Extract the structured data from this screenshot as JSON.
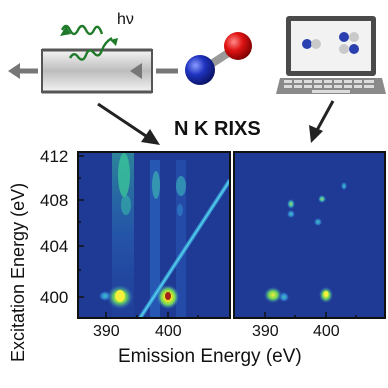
{
  "top": {
    "photon_label": "hν",
    "heading": "N K RIXS"
  },
  "axes": {
    "y_label": "Excitation Energy",
    "y_unit": "(eV)",
    "x_label": "Emission Energy (eV)",
    "y_ticks": [
      "412",
      "408",
      "404",
      "400"
    ],
    "left_x_ticks": [
      "390",
      "400"
    ],
    "right_x_ticks": [
      "390",
      "400"
    ]
  },
  "colors": {
    "map_background": "#1f3a94",
    "arrow": "#222222",
    "photon_wave": "#1f7a2a",
    "sample_flow_arrows": "#777777",
    "atom_red": "#dd1111",
    "atom_blue": "#1a2fb8"
  },
  "icons": [
    "sample-cell-icon",
    "photon-wave-icon",
    "no-molecule-icon",
    "laptop-icon"
  ]
}
